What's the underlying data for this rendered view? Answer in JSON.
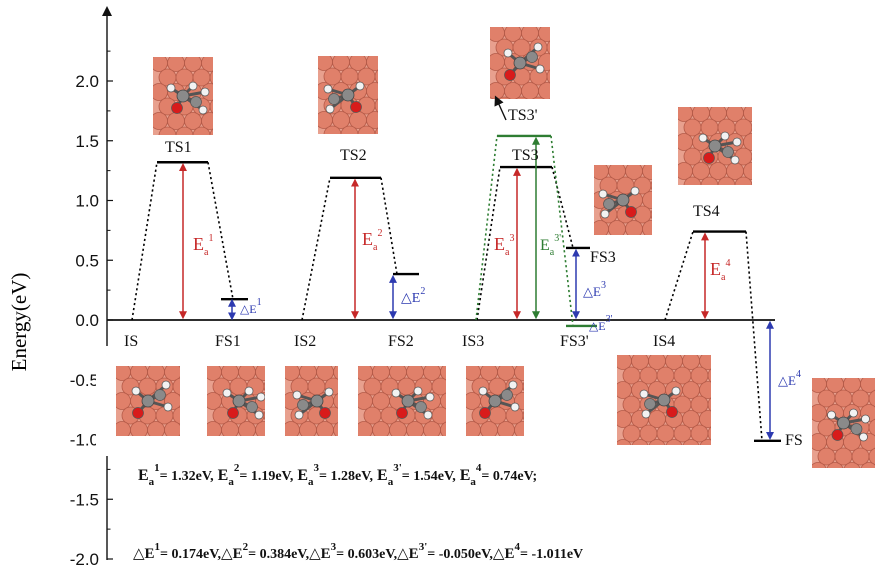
{
  "chart_data": {
    "type": "line",
    "ylabel": "Energy(eV)",
    "ylim": [
      -2.0,
      2.0
    ],
    "yticks": [
      "2.0",
      "1.5",
      "1.0",
      "0.5",
      "0.0",
      "-0.5",
      "-1.0",
      "-1.5",
      "-2.0"
    ],
    "grid": false,
    "colors": {
      "path": "#000000",
      "path_alt": "#2e7d32",
      "activation": "#c62828",
      "reaction": "#2d3ab0",
      "alt_label": "#2e7d32",
      "surface_atom": "#e0806a",
      "carbon": "#8a8a8a",
      "oxygen": "#d81b1b",
      "hydrogen": "#f2f2f2"
    },
    "levels": [
      {
        "label": "IS",
        "energy": 0.0
      },
      {
        "label": "TS1",
        "energy": 1.32
      },
      {
        "label": "FS1",
        "energy": 0.174
      },
      {
        "label": "IS2",
        "energy": 0.0
      },
      {
        "label": "TS2",
        "energy": 1.19
      },
      {
        "label": "FS2",
        "energy": 0.384
      },
      {
        "label": "IS3",
        "energy": 0.0
      },
      {
        "label": "TS3",
        "energy": 1.28
      },
      {
        "label": "FS3",
        "energy": 0.603
      },
      {
        "label": "TS3'",
        "energy": 1.54
      },
      {
        "label": "FS3'",
        "energy": -0.05
      },
      {
        "label": "IS4",
        "energy": 0.0
      },
      {
        "label": "TS4",
        "energy": 0.74
      },
      {
        "label": "FS",
        "energy": -1.011
      }
    ],
    "activation_labels": {
      "a1": {
        "base": "E",
        "sub": "a",
        "sup": "1"
      },
      "a2": {
        "base": "E",
        "sub": "a",
        "sup": "2"
      },
      "a3": {
        "base": "E",
        "sub": "a",
        "sup": "3"
      },
      "a3p": {
        "base": "E",
        "sub": "a",
        "sup": "3'"
      },
      "a4": {
        "base": "E",
        "sub": "a",
        "sup": "4"
      }
    },
    "reaction_labels": {
      "d1": {
        "base": "△E",
        "sup": "1"
      },
      "d2": {
        "base": "△E",
        "sup": "2"
      },
      "d3": {
        "base": "△E",
        "sup": "3"
      },
      "d3p": {
        "base": "△E",
        "sup": "3'"
      },
      "d4": {
        "base": "△E",
        "sup": "4"
      }
    },
    "summary": {
      "activation_line": {
        "base": "E",
        "sub": "a",
        "items": [
          {
            "sup": "1",
            "value": "= 1.32eV,"
          },
          {
            "sup": "2",
            "value": "= 1.19eV,"
          },
          {
            "sup": "3",
            "value": "= 1.28eV,"
          },
          {
            "sup": "3'",
            "value": "= 1.54eV,"
          },
          {
            "sup": "4",
            "value": "= 0.74eV;"
          }
        ]
      },
      "reaction_line": {
        "base": "△E",
        "items": [
          {
            "sup": "1",
            "value": "= 0.174eV,"
          },
          {
            "sup": "2",
            "value": "= 0.384eV,"
          },
          {
            "sup": "3",
            "value": "= 0.603eV,"
          },
          {
            "sup": "3'",
            "value": "= -0.050eV,"
          },
          {
            "sup": "4",
            "value": "= -1.011eV"
          }
        ]
      }
    }
  }
}
